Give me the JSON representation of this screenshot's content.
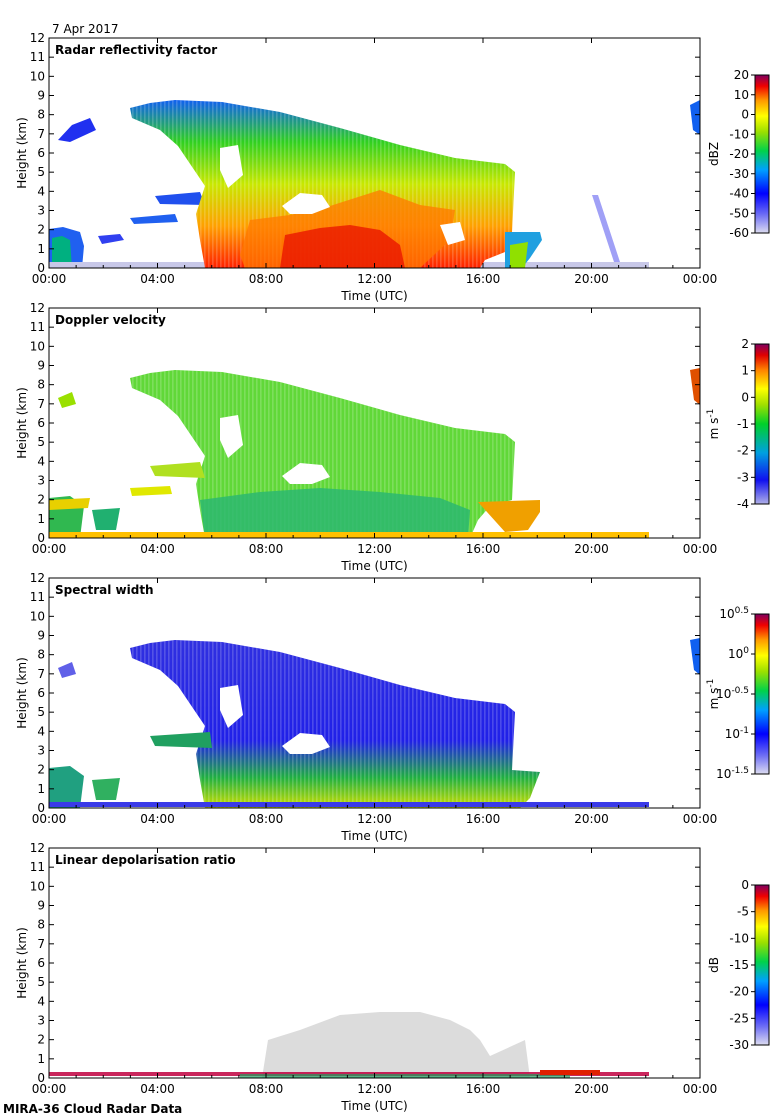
{
  "date_label": "7 Apr 2017",
  "footer": "MIRA-36 Cloud Radar Data",
  "chart_data": [
    {
      "type": "heatmap",
      "title": "Radar reflectivity factor",
      "xlabel": "Time (UTC)",
      "ylabel": "Height (km)",
      "xticks": [
        "00:00",
        "04:00",
        "08:00",
        "12:00",
        "16:00",
        "20:00",
        "00:00"
      ],
      "yticks": [
        0,
        1,
        2,
        3,
        4,
        5,
        6,
        7,
        8,
        9,
        10,
        11,
        12
      ],
      "ylim": [
        0,
        12
      ],
      "colorbar": {
        "label": "dBZ",
        "ticks": [
          "20",
          "10",
          "0",
          "-10",
          "-20",
          "-30",
          "-40",
          "-50",
          "-60"
        ],
        "range": [
          -60,
          20
        ]
      }
    },
    {
      "type": "heatmap",
      "title": "Doppler velocity",
      "xlabel": "Time (UTC)",
      "ylabel": "Height (km)",
      "xticks": [
        "00:00",
        "04:00",
        "08:00",
        "12:00",
        "16:00",
        "20:00",
        "00:00"
      ],
      "yticks": [
        0,
        1,
        2,
        3,
        4,
        5,
        6,
        7,
        8,
        9,
        10,
        11,
        12
      ],
      "ylim": [
        0,
        12
      ],
      "colorbar": {
        "label": "m s-1",
        "ticks": [
          "2",
          "1",
          "0",
          "-1",
          "-2",
          "-3",
          "-4"
        ],
        "range": [
          -4,
          2
        ]
      }
    },
    {
      "type": "heatmap",
      "title": "Spectral width",
      "xlabel": "Time (UTC)",
      "ylabel": "Height (km)",
      "xticks": [
        "00:00",
        "04:00",
        "08:00",
        "12:00",
        "16:00",
        "20:00",
        "00:00"
      ],
      "yticks": [
        0,
        1,
        2,
        3,
        4,
        5,
        6,
        7,
        8,
        9,
        10,
        11,
        12
      ],
      "ylim": [
        0,
        12
      ],
      "colorbar": {
        "label": "m s-1",
        "ticks": [
          "10^0.5",
          "10^0",
          "10^-0.5",
          "10^-1",
          "10^-1.5"
        ],
        "range_log10": [
          -1.5,
          0.5
        ]
      }
    },
    {
      "type": "heatmap",
      "title": "Linear depolarisation ratio",
      "xlabel": "Time (UTC)",
      "ylabel": "Height (km)",
      "xticks": [
        "00:00",
        "04:00",
        "08:00",
        "12:00",
        "16:00",
        "20:00",
        "00:00"
      ],
      "yticks": [
        0,
        1,
        2,
        3,
        4,
        5,
        6,
        7,
        8,
        9,
        10,
        11,
        12
      ],
      "ylim": [
        0,
        12
      ],
      "colorbar": {
        "label": "dB",
        "ticks": [
          "0",
          "-5",
          "-10",
          "-15",
          "-20",
          "-25",
          "-30"
        ],
        "range": [
          -30,
          0
        ]
      }
    }
  ]
}
